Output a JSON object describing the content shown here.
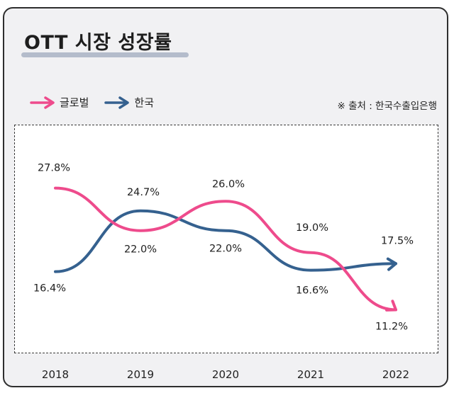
{
  "chart_data": {
    "type": "line",
    "title": "OTT 시장 성장률",
    "source": "※ 출처 : 한국수출입은행",
    "categories": [
      "2018",
      "2019",
      "2020",
      "2021",
      "2022"
    ],
    "series": [
      {
        "name": "글로벌",
        "color": "#ee4b8c",
        "values": [
          27.8,
          22.0,
          26.0,
          19.0,
          11.2
        ],
        "labels": [
          "27.8%",
          "22.0%",
          "26.0%",
          "19.0%",
          "11.2%"
        ]
      },
      {
        "name": "한국",
        "color": "#35618f",
        "values": [
          16.4,
          24.7,
          22.0,
          16.6,
          17.5
        ],
        "labels": [
          "16.4%",
          "24.7%",
          "22.0%",
          "16.6%",
          "17.5%"
        ]
      }
    ],
    "ylim": [
      5,
      35
    ],
    "grid": false,
    "legend_position": "top-left"
  }
}
